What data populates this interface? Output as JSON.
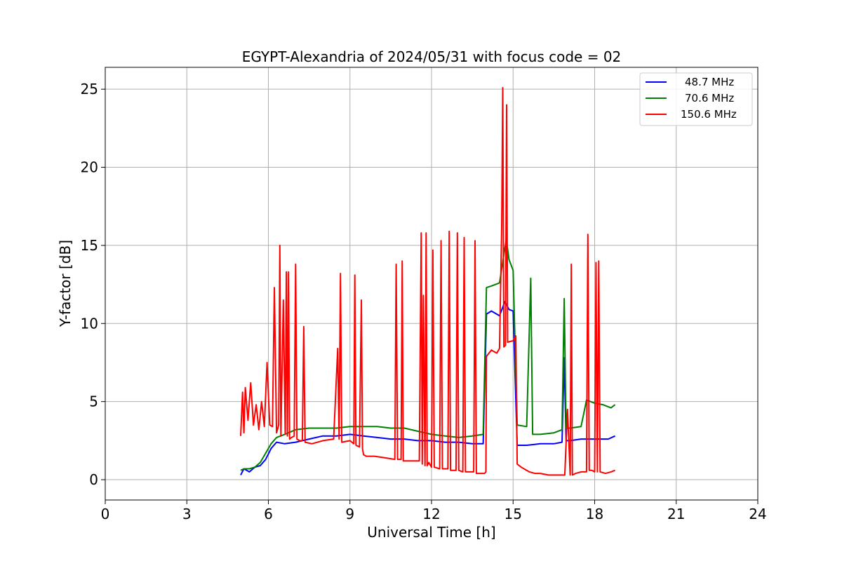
{
  "chart_data": {
    "type": "line",
    "title": "EGYPT-Alexandria of 2024/05/31 with focus code = 02",
    "xlabel": "Universal Time [h]",
    "ylabel": "Y-factor [dB]",
    "xlim": [
      0,
      24
    ],
    "ylim": [
      -1.3,
      26.4
    ],
    "xticks": [
      0,
      3,
      6,
      9,
      12,
      15,
      18,
      21,
      24
    ],
    "xtick_labels": [
      "0",
      "3",
      "6",
      "9",
      "12",
      "15",
      "18",
      "21",
      "24"
    ],
    "yticks": [
      0,
      5,
      10,
      15,
      20,
      25
    ],
    "ytick_labels": [
      "0",
      "5",
      "10",
      "15",
      "20",
      "25"
    ],
    "grid": true,
    "legend_position": "top-right",
    "series": [
      {
        "name": "48.7 MHz",
        "color": "#0000ff",
        "x": [
          4.98,
          5.1,
          5.3,
          5.5,
          5.7,
          5.9,
          6.1,
          6.3,
          6.6,
          7.0,
          7.5,
          8.0,
          8.5,
          9.0,
          9.5,
          10.0,
          10.5,
          11.0,
          11.5,
          12.0,
          12.5,
          13.0,
          13.5,
          13.9,
          14.02,
          14.2,
          14.5,
          14.7,
          14.85,
          15.0,
          15.15,
          15.5,
          16.0,
          16.5,
          16.8,
          16.88,
          16.95,
          17.1,
          17.5,
          18.0,
          18.5,
          18.75
        ],
        "y": [
          0.3,
          0.7,
          0.5,
          0.8,
          0.9,
          1.3,
          2.0,
          2.4,
          2.3,
          2.4,
          2.6,
          2.8,
          2.8,
          2.9,
          2.8,
          2.7,
          2.6,
          2.6,
          2.5,
          2.5,
          2.4,
          2.4,
          2.3,
          2.3,
          10.6,
          10.8,
          10.5,
          11.4,
          10.9,
          10.8,
          2.2,
          2.2,
          2.3,
          2.3,
          2.4,
          7.8,
          2.5,
          2.5,
          2.6,
          2.6,
          2.6,
          2.8
        ]
      },
      {
        "name": "70.6 MHz",
        "color": "#008000",
        "x": [
          4.98,
          5.1,
          5.3,
          5.5,
          5.7,
          5.9,
          6.1,
          6.3,
          6.6,
          7.0,
          7.5,
          8.0,
          8.5,
          9.0,
          9.5,
          10.0,
          10.5,
          11.0,
          11.5,
          12.0,
          12.5,
          13.0,
          13.5,
          13.9,
          14.02,
          14.2,
          14.5,
          14.75,
          14.85,
          15.0,
          15.15,
          15.5,
          15.65,
          15.72,
          16.0,
          16.5,
          16.8,
          16.88,
          16.95,
          17.1,
          17.5,
          17.7,
          18.0,
          18.3,
          18.6,
          18.75
        ],
        "y": [
          0.6,
          0.7,
          0.7,
          0.8,
          1.1,
          1.7,
          2.3,
          2.7,
          2.9,
          3.2,
          3.3,
          3.3,
          3.3,
          3.4,
          3.4,
          3.4,
          3.3,
          3.3,
          3.1,
          2.9,
          2.8,
          2.7,
          2.8,
          2.9,
          12.3,
          12.4,
          12.6,
          15.4,
          14.1,
          13.4,
          3.5,
          3.4,
          12.9,
          2.9,
          2.9,
          3.0,
          3.2,
          11.6,
          3.3,
          3.3,
          3.4,
          5.1,
          4.9,
          4.8,
          4.6,
          4.8
        ]
      },
      {
        "name": "150.6 MHz",
        "color": "#ff0000",
        "x": [
          4.98,
          5.05,
          5.1,
          5.15,
          5.25,
          5.35,
          5.45,
          5.55,
          5.65,
          5.75,
          5.85,
          5.95,
          6.05,
          6.15,
          6.22,
          6.3,
          6.38,
          6.42,
          6.46,
          6.55,
          6.62,
          6.66,
          6.7,
          6.74,
          6.78,
          6.85,
          6.95,
          7.0,
          7.05,
          7.15,
          7.25,
          7.3,
          7.35,
          7.6,
          8.0,
          8.4,
          8.55,
          8.6,
          8.65,
          8.7,
          9.0,
          9.14,
          9.18,
          9.22,
          9.35,
          9.42,
          9.46,
          9.5,
          9.6,
          9.9,
          10.3,
          10.65,
          10.7,
          10.75,
          10.88,
          10.92,
          10.96,
          11.2,
          11.55,
          11.62,
          11.66,
          11.7,
          11.76,
          11.8,
          11.84,
          11.9,
          12.0,
          12.05,
          12.1,
          12.3,
          12.35,
          12.4,
          12.6,
          12.65,
          12.7,
          12.9,
          12.95,
          13.0,
          13.15,
          13.2,
          13.25,
          13.55,
          13.6,
          13.65,
          13.95,
          14.0,
          14.02,
          14.2,
          14.4,
          14.5,
          14.58,
          14.62,
          14.66,
          14.72,
          14.76,
          14.8,
          15.0,
          15.1,
          15.15,
          15.3,
          15.5,
          15.6,
          15.8,
          16.0,
          16.3,
          16.6,
          16.9,
          17.0,
          17.1,
          17.14,
          17.18,
          17.3,
          17.5,
          17.7,
          17.75,
          17.8,
          17.9,
          18.0,
          18.05,
          18.1,
          18.15,
          18.2,
          18.4,
          18.6,
          18.75
        ],
        "y": [
          2.8,
          5.6,
          3.0,
          5.9,
          3.8,
          6.2,
          3.5,
          4.8,
          3.2,
          5.0,
          3.4,
          7.5,
          3.5,
          3.4,
          12.3,
          3.0,
          3.5,
          15.0,
          2.8,
          11.5,
          2.9,
          13.3,
          2.8,
          13.3,
          2.6,
          2.7,
          2.8,
          13.8,
          2.6,
          2.5,
          2.5,
          9.8,
          2.4,
          2.3,
          2.5,
          2.6,
          8.4,
          2.6,
          13.2,
          2.4,
          2.5,
          2.3,
          13.1,
          2.2,
          2.1,
          11.5,
          2.0,
          1.6,
          1.5,
          1.5,
          1.4,
          1.3,
          13.8,
          1.3,
          1.3,
          14.0,
          1.2,
          1.2,
          1.2,
          15.8,
          1.0,
          11.8,
          0.9,
          15.8,
          0.9,
          1.1,
          0.8,
          14.7,
          0.8,
          0.7,
          15.3,
          0.7,
          0.7,
          15.9,
          0.6,
          0.6,
          15.8,
          0.6,
          0.5,
          15.5,
          0.5,
          0.5,
          15.3,
          0.4,
          0.4,
          0.5,
          7.9,
          8.3,
          8.1,
          8.4,
          16.2,
          25.1,
          8.5,
          8.6,
          24.0,
          8.8,
          8.9,
          9.2,
          1.0,
          0.8,
          0.6,
          0.5,
          0.4,
          0.4,
          0.3,
          0.3,
          0.3,
          4.5,
          0.3,
          13.8,
          0.3,
          0.4,
          0.5,
          0.5,
          15.7,
          0.6,
          0.6,
          0.5,
          13.9,
          0.5,
          14.0,
          0.5,
          0.4,
          0.5,
          0.6
        ]
      }
    ]
  }
}
